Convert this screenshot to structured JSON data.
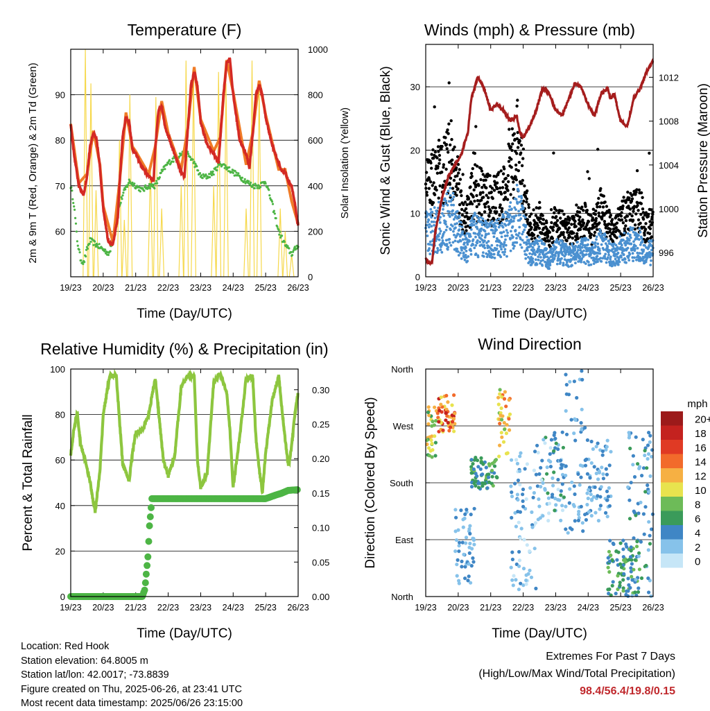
{
  "chart_data": [
    {
      "type": "line",
      "title": "Temperature (F)",
      "xlabel": "Time (Day/UTC)",
      "ylabel": "2m & 9m T (Red, Orange) & 2m Td (Green)",
      "y2label": "Solar Insolation (Yellow)",
      "x_ticks": [
        "19/23",
        "20/23",
        "21/23",
        "22/23",
        "23/23",
        "24/23",
        "25/23",
        "26/23"
      ],
      "ylim": [
        50,
        100
      ],
      "y_ticks": [
        60,
        70,
        80,
        90
      ],
      "y2lim": [
        0,
        1000
      ],
      "y2_ticks": [
        0,
        200,
        400,
        600,
        800,
        1000
      ],
      "grid": true,
      "series": [
        {
          "name": "2m T",
          "color": "#d42a24",
          "x_day": [
            0,
            0.1,
            0.25,
            0.4,
            0.5,
            0.6,
            0.7,
            0.8,
            0.9,
            1.0,
            1.15,
            1.3,
            1.45,
            1.5,
            1.6,
            1.7,
            1.8,
            1.9,
            2.0,
            2.2,
            2.4,
            2.55,
            2.6,
            2.7,
            2.8,
            2.9,
            3.0,
            3.2,
            3.4,
            3.5,
            3.6,
            3.7,
            3.8,
            3.9,
            4.0,
            4.2,
            4.4,
            4.55,
            4.6,
            4.7,
            4.8,
            4.9,
            5.0,
            5.2,
            5.4,
            5.5,
            5.6,
            5.7,
            5.8,
            5.9,
            6.0,
            6.2,
            6.4,
            6.5,
            6.6,
            6.7,
            6.8,
            6.9,
            7.0
          ],
          "values": [
            83.5,
            77,
            70,
            68,
            72,
            79,
            81.5,
            80,
            74,
            65,
            58,
            57,
            63,
            70,
            81,
            85,
            84,
            78,
            77,
            74,
            72,
            71,
            78,
            86.5,
            87.5,
            83,
            81,
            77,
            73,
            72,
            82,
            92,
            95,
            92,
            84,
            79,
            77,
            75,
            80,
            90,
            97,
            98,
            90,
            80,
            77,
            74,
            81,
            90,
            92,
            90,
            85,
            79,
            75,
            73,
            73,
            71,
            70,
            66,
            61
          ]
        },
        {
          "name": "9m T",
          "color": "#f07c27",
          "x_day": [
            0,
            0.25,
            0.5,
            0.7,
            0.9,
            1.0,
            1.3,
            1.5,
            1.7,
            1.9,
            2.0,
            2.4,
            2.6,
            2.8,
            3.0,
            3.4,
            3.6,
            3.8,
            4.0,
            4.4,
            4.6,
            4.8,
            5.0,
            5.4,
            5.6,
            5.8,
            6.0,
            6.4,
            6.6,
            6.8,
            7.0
          ],
          "values": [
            83,
            70,
            72,
            81.5,
            74,
            65,
            57,
            70,
            85.5,
            78,
            77,
            72,
            78,
            88,
            81,
            73,
            82,
            95.5,
            84,
            77,
            80,
            97,
            90,
            74,
            81,
            92.5,
            85,
            73,
            73,
            66,
            61
          ]
        },
        {
          "name": "2m Td",
          "color": "#4db545",
          "x_day": [
            0,
            0.1,
            0.2,
            0.3,
            0.4,
            0.5,
            0.6,
            0.8,
            1.0,
            1.2,
            1.4,
            1.6,
            1.8,
            2.0,
            2.2,
            2.4,
            2.6,
            2.8,
            3.0,
            3.2,
            3.4,
            3.6,
            3.8,
            4.0,
            4.2,
            4.4,
            4.6,
            4.8,
            5.0,
            5.2,
            5.4,
            5.6,
            5.8,
            6.0,
            6.2,
            6.4,
            6.6,
            6.8,
            7.0
          ],
          "values": [
            70,
            66,
            58,
            54,
            53,
            56,
            58,
            57,
            56,
            55,
            63,
            68,
            71,
            70,
            69,
            70,
            70,
            73,
            75,
            76,
            77,
            77,
            75,
            72,
            72,
            73,
            75,
            74,
            73,
            72,
            71,
            70,
            70,
            71,
            66,
            60,
            57,
            55,
            57
          ]
        }
      ],
      "y2_series": {
        "name": "Solar Insolation",
        "color": "#f6d84a",
        "day_peaks": [
          [
            0.45,
            1000,
            0.62,
            850,
            0.78,
            380
          ],
          [
            1.5,
            600,
            1.65,
            250,
            1.82,
            800
          ],
          [
            2.45,
            500,
            2.62,
            790,
            2.8,
            300
          ],
          [
            3.4,
            400,
            3.55,
            950,
            3.78,
            900
          ],
          [
            4.4,
            400,
            4.55,
            900,
            4.78,
            850
          ],
          [
            5.4,
            300,
            5.58,
            950,
            5.8,
            850
          ],
          [
            6.45,
            300,
            6.6,
            200,
            6.8,
            100
          ]
        ]
      }
    },
    {
      "type": "scatter",
      "title": "Winds (mph) & Pressure (mb)",
      "xlabel": "Time (Day/UTC)",
      "ylabel": "Sonic Wind & Gust (Blue, Black)",
      "y2label": "Station Pressure (Maroon)",
      "x_ticks": [
        "19/23",
        "20/23",
        "21/23",
        "22/23",
        "23/23",
        "24/23",
        "25/23",
        "26/23"
      ],
      "ylim": [
        0,
        36.7
      ],
      "y_ticks": [
        0,
        10,
        20,
        30
      ],
      "y2lim": [
        993.8,
        1015
      ],
      "y2_ticks": [
        996,
        1000,
        1004,
        1008,
        1012
      ],
      "grid": true,
      "wind_env": {
        "x_day": [
          0,
          0.3,
          0.6,
          0.8,
          1.0,
          1.2,
          1.5,
          1.8,
          2.2,
          2.5,
          2.8,
          3.0,
          3.2,
          3.5,
          3.8,
          4.0,
          4.3,
          4.6,
          4.9,
          5.1,
          5.4,
          5.7,
          6.0,
          6.3,
          6.6,
          6.8,
          7.0
        ],
        "mean": [
          8,
          9,
          10,
          11,
          8,
          5,
          8,
          7,
          7,
          8,
          12,
          9,
          4,
          5,
          3,
          5,
          4,
          4,
          5,
          4,
          6,
          4,
          5,
          6,
          6,
          4,
          5
        ]
      },
      "series": [
        {
          "name": "Sonic Wind",
          "color": "#4a90d0"
        },
        {
          "name": "Gust",
          "color": "#000000"
        },
        {
          "name": "Station Pressure",
          "color": "#a51d1d",
          "x_day": [
            0,
            0.1,
            0.2,
            0.3,
            0.5,
            0.7,
            0.9,
            1.1,
            1.3,
            1.4,
            1.5,
            1.6,
            1.8,
            2.0,
            2.2,
            2.4,
            2.5,
            2.6,
            2.8,
            2.9,
            3.0,
            3.2,
            3.4,
            3.6,
            3.8,
            4.0,
            4.2,
            4.4,
            4.6,
            4.8,
            5.0,
            5.2,
            5.4,
            5.6,
            5.7,
            5.8,
            6.0,
            6.2,
            6.4,
            6.6,
            6.8,
            6.9,
            7.0
          ],
          "values": [
            995.5,
            995,
            995.2,
            998,
            1001,
            1003,
            1004,
            1005,
            1007,
            1010,
            1011,
            1012,
            1011,
            1009,
            1009.5,
            1009,
            1008.5,
            1008,
            1008.5,
            1007,
            1006.5,
            1007.5,
            1009,
            1011,
            1010.5,
            1009,
            1008.5,
            1010,
            1011.5,
            1011,
            1009.5,
            1008.5,
            1010.5,
            1011,
            1010,
            1010.5,
            1008,
            1007.5,
            1010,
            1011,
            1012.5,
            1013,
            1013.5
          ]
        }
      ]
    },
    {
      "type": "line",
      "title": "Relative Humidity (%) & Precipitation (in)",
      "xlabel": "Time (Day/UTC)",
      "ylabel": "Percent & Total Rainfall",
      "x_ticks": [
        "19/23",
        "20/23",
        "21/23",
        "22/23",
        "23/23",
        "24/23",
        "25/23",
        "26/23"
      ],
      "ylim": [
        0,
        100
      ],
      "y_ticks": [
        0,
        20,
        40,
        60,
        80,
        100
      ],
      "y2lim": [
        0,
        0.33
      ],
      "y2_ticks": [
        "0.00",
        "0.05",
        "0.10",
        "0.15",
        "0.20",
        "0.25",
        "0.30"
      ],
      "grid": true,
      "series": [
        {
          "name": "Relative Humidity",
          "color": "#8dc63f",
          "x_day": [
            0,
            0.1,
            0.2,
            0.3,
            0.45,
            0.6,
            0.75,
            0.9,
            1.0,
            1.2,
            1.4,
            1.5,
            1.6,
            1.8,
            1.9,
            2.0,
            2.2,
            2.4,
            2.6,
            2.7,
            2.85,
            3.0,
            3.2,
            3.4,
            3.6,
            3.8,
            3.9,
            4.0,
            4.2,
            4.4,
            4.6,
            4.8,
            4.9,
            5.0,
            5.2,
            5.4,
            5.6,
            5.7,
            5.8,
            5.9,
            6.0,
            6.2,
            6.4,
            6.6,
            6.7,
            6.8,
            6.9,
            7.0
          ],
          "values": [
            62,
            74,
            81,
            67,
            60,
            50,
            37,
            55,
            80,
            97,
            97,
            78,
            58,
            51,
            63,
            72,
            73,
            80,
            96,
            82,
            60,
            53,
            62,
            92,
            97,
            97,
            60,
            48,
            54,
            94,
            98,
            90,
            73,
            48,
            70,
            96,
            97,
            70,
            56,
            46,
            63,
            86,
            97,
            69,
            57,
            66,
            80,
            90
          ]
        },
        {
          "name": "Total Rainfall",
          "color": "#4db545",
          "x_day": [
            0,
            1.0,
            2.0,
            2.2,
            2.28,
            2.32,
            2.38,
            2.42,
            2.5,
            3.0,
            4.0,
            5.0,
            5.5,
            6.0,
            6.3,
            6.5,
            6.7,
            7.0
          ],
          "values": [
            0,
            0,
            0,
            0,
            0.01,
            0.03,
            0.06,
            0.1,
            0.142,
            0.142,
            0.142,
            0.142,
            0.142,
            0.142,
            0.147,
            0.15,
            0.154,
            0.155
          ]
        }
      ]
    },
    {
      "type": "scatter",
      "title": "Wind Direction",
      "xlabel": "Time (Day/UTC)",
      "ylabel": "Direction (Colored By Speed)",
      "x_ticks": [
        "19/23",
        "20/23",
        "21/23",
        "22/23",
        "23/23",
        "24/23",
        "25/23",
        "26/23"
      ],
      "y_ticks": [
        "North",
        "East",
        "South",
        "West",
        "North"
      ],
      "legend": {
        "title": "mph",
        "labels": [
          "0",
          "2",
          "4",
          "6",
          "8",
          "10",
          "12",
          "14",
          "16",
          "18",
          "20+"
        ],
        "colors": [
          "#c6e6f7",
          "#86c2ea",
          "#3f86c5",
          "#3a9b5a",
          "#6dbb58",
          "#e8e34e",
          "#f6b043",
          "#f26b2b",
          "#e03a24",
          "#c4221f",
          "#9c1a1a"
        ],
        "placement": "right"
      },
      "clusters": [
        {
          "x_day": [
            0,
            0.35
          ],
          "dir": [
            220,
            300
          ],
          "speed": [
            6,
            12
          ]
        },
        {
          "x_day": [
            0.35,
            0.9
          ],
          "dir": [
            260,
            320
          ],
          "speed": [
            10,
            18
          ]
        },
        {
          "x_day": [
            0.9,
            1.5
          ],
          "dir": [
            10,
            140
          ],
          "speed": [
            2,
            4
          ]
        },
        {
          "x_day": [
            1.4,
            2.2
          ],
          "dir": [
            170,
            220
          ],
          "speed": [
            4,
            8
          ]
        },
        {
          "x_day": [
            2.2,
            2.6
          ],
          "dir": [
            220,
            330
          ],
          "speed": [
            8,
            14
          ]
        },
        {
          "x_day": [
            2.6,
            3.4
          ],
          "dir": [
            10,
            230
          ],
          "speed": [
            0,
            4
          ]
        },
        {
          "x_day": [
            3.4,
            4.3
          ],
          "dir": [
            120,
            260
          ],
          "speed": [
            0,
            6
          ]
        },
        {
          "x_day": [
            4.3,
            4.9
          ],
          "dir": [
            100,
            360
          ],
          "speed": [
            1,
            5
          ]
        },
        {
          "x_day": [
            4.9,
            5.7
          ],
          "dir": [
            120,
            250
          ],
          "speed": [
            1,
            5
          ]
        },
        {
          "x_day": [
            5.6,
            6.6
          ],
          "dir": [
            0,
            90
          ],
          "speed": [
            3,
            8
          ]
        },
        {
          "x_day": [
            6.2,
            7.0
          ],
          "dir": [
            0,
            260
          ],
          "speed": [
            2,
            6
          ]
        }
      ]
    }
  ],
  "footer": {
    "location": "Location: Red Hook",
    "elevation": "Station elevation: 64.8005 m",
    "latlon": "Station lat/lon: 42.0017; -73.8839",
    "created": "Figure created on Thu, 2025-06-26, at 23:41 UTC",
    "recent": "Most recent data timestamp: 2025/06/26 23:15:00"
  },
  "extremes": {
    "title": "Extremes For Past 7 Days",
    "subtitle": "(High/Low/Max Wind/Total Precipitation)",
    "values": "98.4/56.4/19.8/0.15"
  }
}
